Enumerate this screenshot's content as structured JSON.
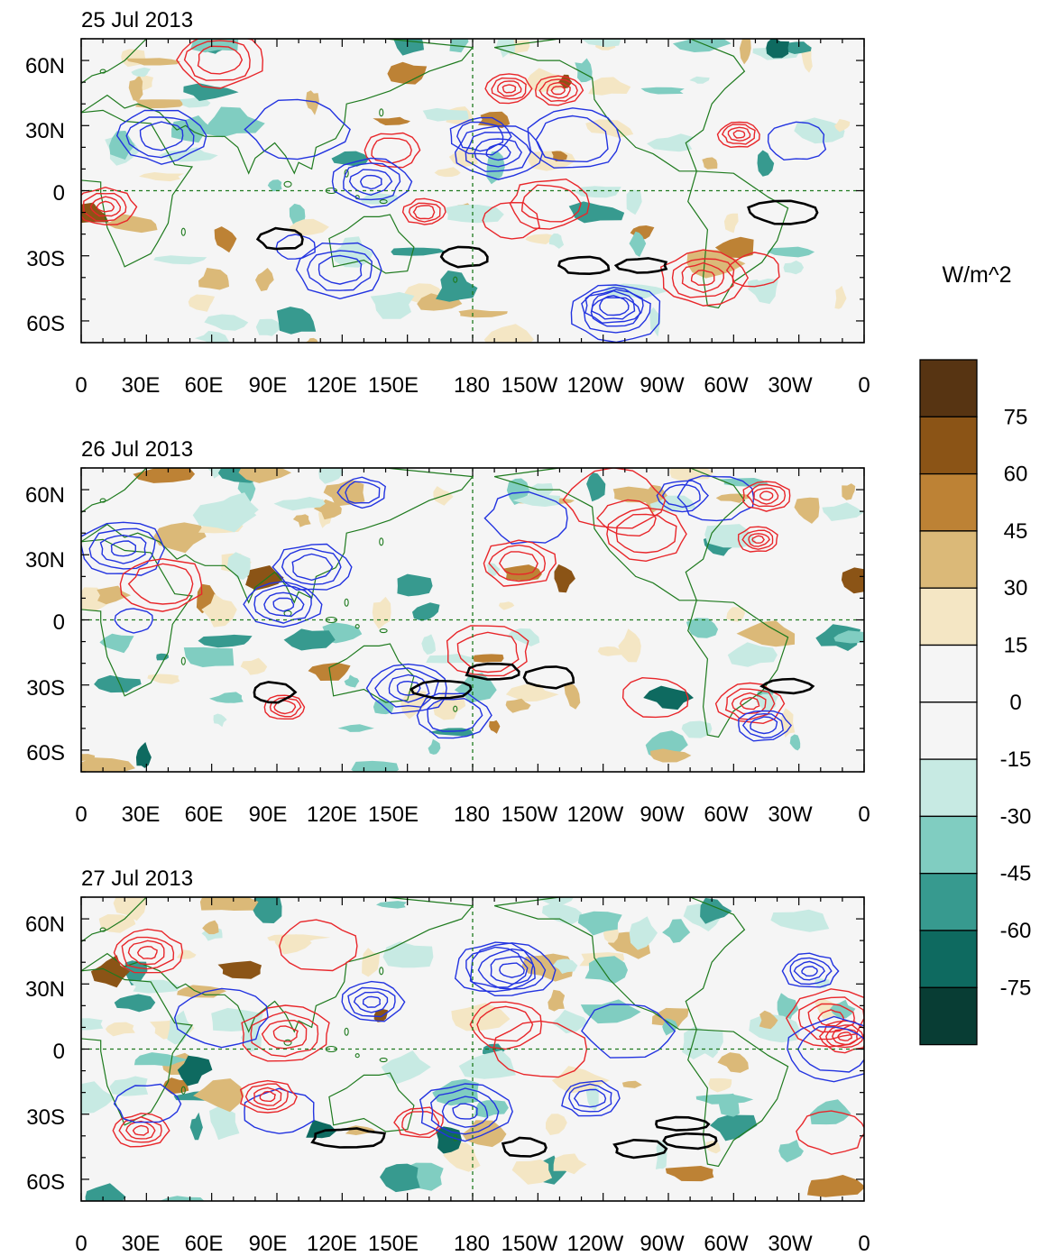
{
  "units": "W/m^2",
  "colors": {
    "positive_contour": "#e8262a",
    "negative_contour": "#2233e0",
    "thick_contour": "#000000",
    "coastline": "#1e7a1e",
    "reference_line": "#1e7a1e"
  },
  "panels": [
    {
      "title": "25 Jul 2013"
    },
    {
      "title": "26 Jul 2013"
    },
    {
      "title": "27 Jul 2013"
    }
  ],
  "x_ticks": [
    "0",
    "30E",
    "60E",
    "90E",
    "120E",
    "150E",
    "180",
    "150W",
    "120W",
    "90W",
    "60W",
    "30W",
    "0"
  ],
  "y_ticks": [
    "60N",
    "30N",
    "0",
    "30S",
    "60S"
  ],
  "colorbar": {
    "labels": [
      "75",
      "60",
      "45",
      "30",
      "15",
      "0",
      "-15",
      "-30",
      "-45",
      "-60",
      "-75"
    ],
    "colors": [
      "#573412",
      "#8b5416",
      "#bd8235",
      "#dbb978",
      "#f4e6c4",
      "#f5f5f5",
      "#f5f5f5",
      "#c7eae3",
      "#80cdc1",
      "#379a8f",
      "#0e6a60",
      "#083d34"
    ]
  },
  "chart_data": {
    "type": "heatmap",
    "x_ticks": [
      "0",
      "30E",
      "60E",
      "90E",
      "120E",
      "150E",
      "180",
      "150W",
      "120W",
      "90W",
      "60W",
      "30W",
      "0"
    ],
    "y_ticks": [
      "60N",
      "30N",
      "0",
      "30S",
      "60S"
    ],
    "xlim": [
      0,
      360
    ],
    "ylim": [
      -70,
      70
    ],
    "colorbar_levels": [
      -75,
      -60,
      -45,
      -30,
      -15,
      0,
      15,
      30,
      45,
      60,
      75
    ],
    "units": "W/m^2",
    "panels": [
      "25 Jul 2013",
      "26 Jul 2013",
      "27 Jul 2013"
    ],
    "reference_lines": {
      "equator_lat": 0,
      "dateline_lon": 180
    }
  }
}
